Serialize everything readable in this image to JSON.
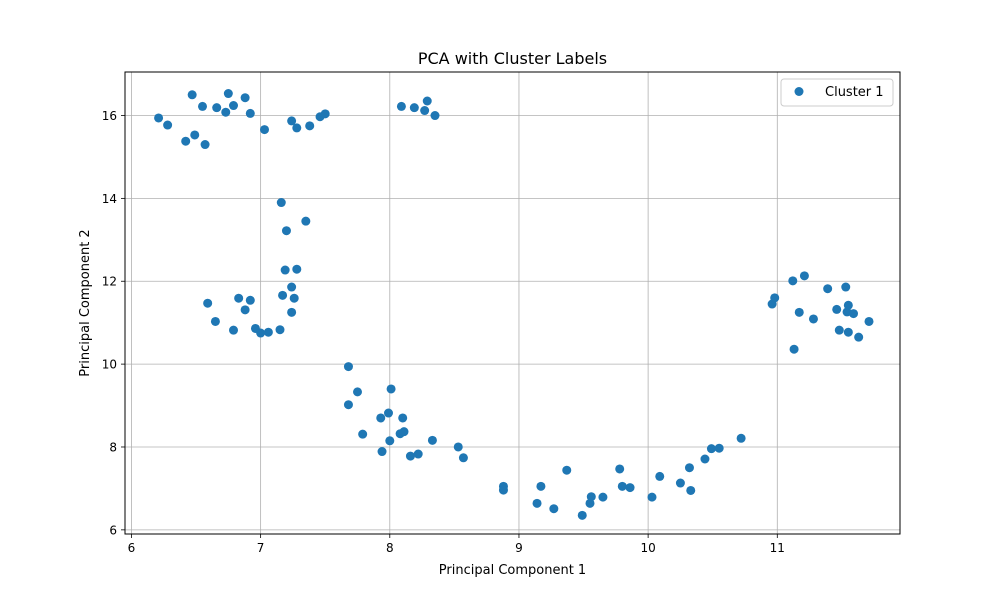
{
  "chart_data": {
    "type": "scatter",
    "title": "PCA with Cluster Labels",
    "xlabel": "Principal Component 1",
    "ylabel": "Principal Component 2",
    "xlim": [
      5.95,
      11.95
    ],
    "ylim": [
      5.9,
      17.05
    ],
    "x_ticks": [
      6,
      7,
      8,
      9,
      10,
      11
    ],
    "y_ticks": [
      6,
      8,
      10,
      12,
      14,
      16
    ],
    "grid": true,
    "legend_position": "top-right",
    "series": [
      {
        "name": "Cluster 1",
        "color": "#1f77b4",
        "points": [
          [
            6.21,
            15.94
          ],
          [
            6.28,
            15.77
          ],
          [
            6.42,
            15.38
          ],
          [
            6.47,
            16.5
          ],
          [
            6.49,
            15.53
          ],
          [
            6.55,
            16.22
          ],
          [
            6.57,
            15.3
          ],
          [
            6.66,
            16.19
          ],
          [
            6.73,
            16.08
          ],
          [
            6.75,
            16.53
          ],
          [
            6.79,
            16.24
          ],
          [
            6.88,
            16.43
          ],
          [
            6.92,
            16.05
          ],
          [
            7.03,
            15.66
          ],
          [
            7.24,
            15.87
          ],
          [
            7.28,
            15.7
          ],
          [
            7.38,
            15.75
          ],
          [
            7.46,
            15.97
          ],
          [
            7.5,
            16.04
          ],
          [
            8.09,
            16.22
          ],
          [
            8.19,
            16.19
          ],
          [
            8.27,
            16.12
          ],
          [
            8.29,
            16.35
          ],
          [
            8.35,
            16.0
          ],
          [
            7.16,
            13.9
          ],
          [
            7.2,
            13.22
          ],
          [
            7.35,
            13.45
          ],
          [
            6.59,
            11.47
          ],
          [
            6.65,
            11.03
          ],
          [
            6.79,
            10.82
          ],
          [
            6.83,
            11.59
          ],
          [
            6.88,
            11.31
          ],
          [
            6.92,
            11.54
          ],
          [
            6.96,
            10.86
          ],
          [
            7.0,
            10.75
          ],
          [
            7.06,
            10.77
          ],
          [
            7.15,
            10.83
          ],
          [
            7.17,
            11.66
          ],
          [
            7.19,
            12.27
          ],
          [
            7.24,
            11.86
          ],
          [
            7.24,
            11.25
          ],
          [
            7.26,
            11.59
          ],
          [
            7.28,
            12.29
          ],
          [
            7.68,
            9.94
          ],
          [
            7.68,
            9.02
          ],
          [
            7.75,
            9.33
          ],
          [
            7.79,
            8.31
          ],
          [
            7.93,
            8.7
          ],
          [
            7.94,
            7.89
          ],
          [
            7.99,
            8.82
          ],
          [
            8.0,
            8.15
          ],
          [
            8.01,
            9.4
          ],
          [
            8.08,
            8.32
          ],
          [
            8.1,
            8.7
          ],
          [
            8.11,
            8.37
          ],
          [
            8.16,
            7.78
          ],
          [
            8.22,
            7.83
          ],
          [
            8.33,
            8.16
          ],
          [
            8.53,
            8.0
          ],
          [
            8.57,
            7.74
          ],
          [
            8.88,
            7.05
          ],
          [
            8.88,
            6.96
          ],
          [
            9.14,
            6.64
          ],
          [
            9.17,
            7.05
          ],
          [
            9.27,
            6.51
          ],
          [
            9.37,
            7.44
          ],
          [
            9.49,
            6.35
          ],
          [
            9.55,
            6.64
          ],
          [
            9.56,
            6.8
          ],
          [
            9.65,
            6.79
          ],
          [
            9.78,
            7.47
          ],
          [
            9.8,
            7.05
          ],
          [
            9.86,
            7.02
          ],
          [
            10.03,
            6.79
          ],
          [
            10.09,
            7.29
          ],
          [
            10.25,
            7.13
          ],
          [
            10.32,
            7.5
          ],
          [
            10.33,
            6.95
          ],
          [
            10.44,
            7.71
          ],
          [
            10.49,
            7.96
          ],
          [
            10.55,
            7.97
          ],
          [
            10.72,
            8.21
          ],
          [
            10.96,
            11.45
          ],
          [
            10.98,
            11.6
          ],
          [
            11.12,
            12.01
          ],
          [
            11.13,
            10.36
          ],
          [
            11.17,
            11.25
          ],
          [
            11.21,
            12.13
          ],
          [
            11.28,
            11.09
          ],
          [
            11.39,
            11.82
          ],
          [
            11.46,
            11.32
          ],
          [
            11.48,
            10.82
          ],
          [
            11.53,
            11.86
          ],
          [
            11.54,
            11.26
          ],
          [
            11.55,
            11.42
          ],
          [
            11.55,
            10.77
          ],
          [
            11.59,
            11.22
          ],
          [
            11.63,
            10.65
          ],
          [
            11.71,
            11.03
          ]
        ]
      }
    ]
  }
}
